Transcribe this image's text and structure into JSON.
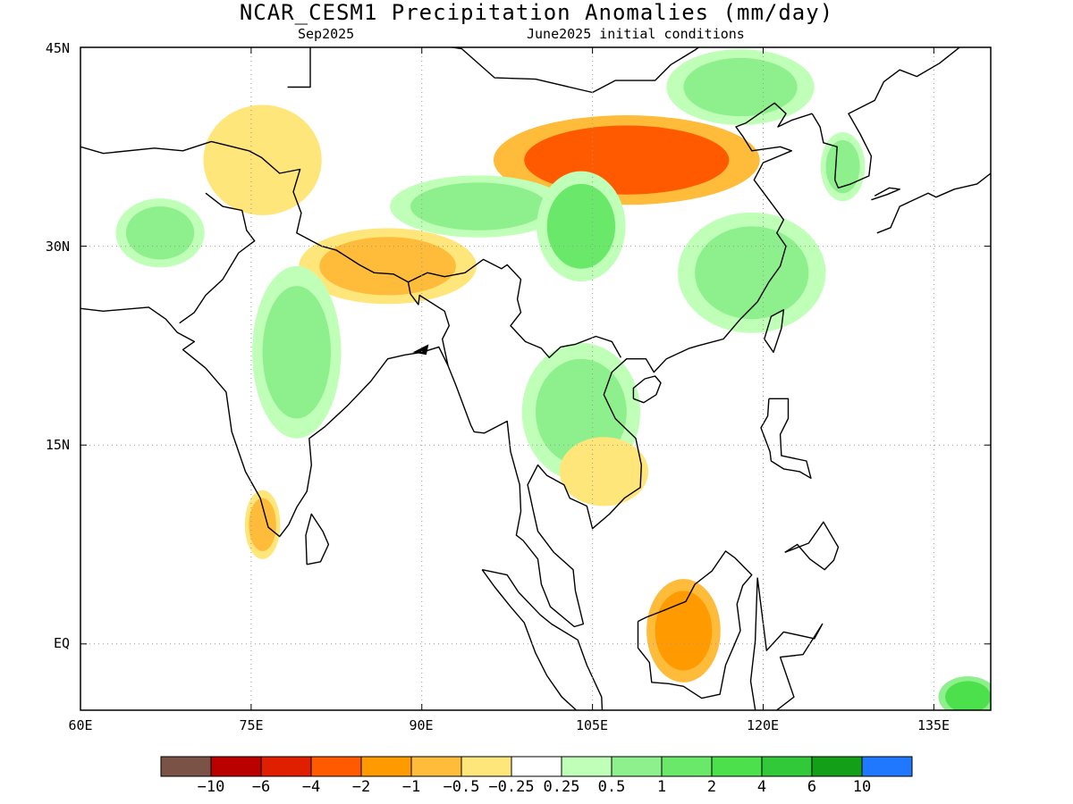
{
  "title": "NCAR_CESM1 Precipitation Anomalies (mm/day)",
  "subtitle_left": "Sep2025",
  "subtitle_right": "June2025 initial conditions",
  "map": {
    "lon_range": [
      60,
      140
    ],
    "lat_range": [
      -5,
      45
    ],
    "lat_ticks": [
      "45N",
      "30N",
      "15N",
      "EQ"
    ],
    "lon_ticks": [
      "60E",
      "75E",
      "90E",
      "105E",
      "120E",
      "135E"
    ],
    "grid": "dotted"
  },
  "colorbar": {
    "colors": [
      "#7a5246",
      "#bb0000",
      "#e01e00",
      "#ff5a00",
      "#ff9a00",
      "#ffbb3a",
      "#ffe67a",
      "#ffffff",
      "#c0ffb8",
      "#8ef08c",
      "#6ae86a",
      "#4ce04c",
      "#31c83a",
      "#139f18",
      "#1f78ff"
    ],
    "labels": [
      "-10",
      "-6",
      "-4",
      "-2",
      "-1",
      "-0.5",
      "-0.25",
      "0.25",
      "0.5",
      "1",
      "2",
      "4",
      "6",
      "10"
    ]
  },
  "chart_data": {
    "type": "heatmap",
    "title": "NCAR_CESM1 Precipitation Anomalies (mm/day)",
    "subtitle": "Sep2025 / June2025 initial conditions",
    "x_range": [
      60,
      140
    ],
    "y_range": [
      -5,
      45
    ],
    "units": "mm/day",
    "regions": [
      {
        "lon": 108,
        "lat": 36.5,
        "value": -2.5
      },
      {
        "lon": 87,
        "lat": 28.5,
        "value": -1
      },
      {
        "lon": 76,
        "lat": 36.5,
        "value": -0.5
      },
      {
        "lon": 95,
        "lat": 33,
        "value": 0.5
      },
      {
        "lon": 104,
        "lat": 31.5,
        "value": 1
      },
      {
        "lon": 119,
        "lat": 28,
        "value": 0.5
      },
      {
        "lon": 104,
        "lat": 17.5,
        "value": 0.5
      },
      {
        "lon": 79,
        "lat": 22,
        "value": 0.5
      },
      {
        "lon": 113,
        "lat": 1,
        "value": -2
      },
      {
        "lon": 76,
        "lat": 9,
        "value": -1
      },
      {
        "lon": 67,
        "lat": 31,
        "value": 0.5
      },
      {
        "lon": 118,
        "lat": 42,
        "value": 0.5
      },
      {
        "lon": 138,
        "lat": -4,
        "value": 2
      },
      {
        "lon": 127,
        "lat": 36,
        "value": 0.5
      },
      {
        "lon": 106,
        "lat": 13,
        "value": -0.5
      }
    ]
  }
}
